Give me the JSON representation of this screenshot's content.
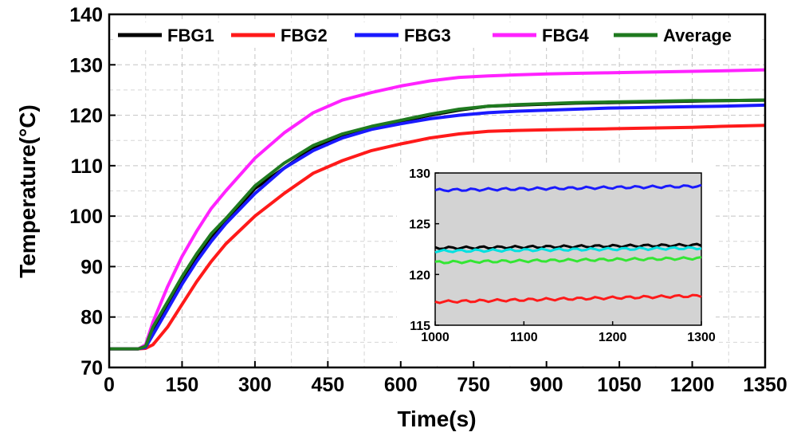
{
  "chart_data": {
    "type": "line",
    "xlabel": "Time(s)",
    "ylabel": "Temperature(°C)",
    "xlim": [
      0,
      1350
    ],
    "ylim": [
      70,
      140
    ],
    "xticks": [
      0,
      150,
      300,
      450,
      600,
      750,
      900,
      1050,
      1200,
      1350
    ],
    "yticks": [
      70,
      80,
      90,
      100,
      110,
      120,
      130,
      140
    ],
    "grid": true,
    "legend_position": "top",
    "series": [
      {
        "name": "FBG1",
        "color": "#000000",
        "x": [
          0,
          60,
          75,
          90,
          120,
          150,
          180,
          210,
          240,
          300,
          360,
          420,
          480,
          540,
          600,
          660,
          720,
          780,
          840,
          900,
          960,
          1020,
          1080,
          1140,
          1200,
          1260,
          1350
        ],
        "y": [
          73.7,
          73.7,
          74,
          77,
          82,
          87,
          92,
          96,
          99,
          105.5,
          109.5,
          113.5,
          116,
          117.5,
          118.8,
          120,
          121,
          121.8,
          122,
          122.2,
          122.4,
          122.5,
          122.6,
          122.7,
          122.8,
          122.9,
          123
        ]
      },
      {
        "name": "FBG2",
        "color": "#ff1a1a",
        "x": [
          0,
          60,
          75,
          90,
          120,
          150,
          180,
          210,
          240,
          300,
          360,
          420,
          480,
          540,
          600,
          660,
          720,
          780,
          840,
          900,
          960,
          1020,
          1080,
          1140,
          1200,
          1260,
          1350
        ],
        "y": [
          73.7,
          73.7,
          73.8,
          74.5,
          78,
          82.5,
          87,
          91,
          94.5,
          100,
          104.5,
          108.5,
          111,
          113,
          114.3,
          115.5,
          116.3,
          116.8,
          117,
          117.1,
          117.2,
          117.3,
          117.4,
          117.5,
          117.6,
          117.8,
          118
        ]
      },
      {
        "name": "FBG3",
        "color": "#1a1aff",
        "x": [
          0,
          60,
          75,
          90,
          120,
          150,
          180,
          210,
          240,
          300,
          360,
          420,
          480,
          540,
          600,
          660,
          720,
          780,
          840,
          900,
          960,
          1020,
          1080,
          1140,
          1200,
          1260,
          1350
        ],
        "y": [
          73.7,
          73.7,
          74,
          76.5,
          81.5,
          86.5,
          91,
          95,
          98.5,
          104.5,
          109.5,
          113,
          115.5,
          117.2,
          118.3,
          119.3,
          120,
          120.5,
          120.8,
          121,
          121.2,
          121.4,
          121.5,
          121.6,
          121.7,
          121.8,
          122
        ]
      },
      {
        "name": "FBG4",
        "color": "#ff22ff",
        "x": [
          0,
          60,
          75,
          90,
          120,
          150,
          180,
          210,
          240,
          300,
          360,
          420,
          480,
          540,
          600,
          660,
          720,
          780,
          840,
          900,
          960,
          1020,
          1080,
          1140,
          1200,
          1260,
          1350
        ],
        "y": [
          73.7,
          73.7,
          74.5,
          79,
          86,
          92,
          97,
          101.5,
          105,
          111.5,
          116.5,
          120.5,
          123,
          124.5,
          125.8,
          126.8,
          127.5,
          127.8,
          128,
          128.2,
          128.3,
          128.4,
          128.5,
          128.6,
          128.7,
          128.8,
          129
        ]
      },
      {
        "name": "Average",
        "color": "#1f7a1f",
        "x": [
          0,
          60,
          75,
          90,
          120,
          150,
          180,
          210,
          240,
          300,
          360,
          420,
          480,
          540,
          600,
          660,
          720,
          780,
          840,
          900,
          960,
          1020,
          1080,
          1140,
          1200,
          1260,
          1350
        ],
        "y": [
          73.7,
          73.7,
          74.2,
          78,
          83,
          88,
          92.5,
          96.5,
          99.5,
          106,
          110.5,
          114,
          116.3,
          117.8,
          119,
          120.2,
          121.2,
          121.8,
          122.1,
          122.3,
          122.5,
          122.6,
          122.7,
          122.8,
          122.9,
          122.9,
          123
        ]
      }
    ],
    "inset": {
      "xlim": [
        1000,
        1300
      ],
      "ylim": [
        115,
        130
      ],
      "xticks": [
        1000,
        1100,
        1200,
        1300
      ],
      "yticks": [
        115,
        120,
        125,
        130
      ],
      "background": "#d3d3d3",
      "series": [
        {
          "color": "#1a1aff",
          "x": [
            1000,
            1300
          ],
          "y": [
            128.3,
            128.7
          ]
        },
        {
          "color": "#000000",
          "x": [
            1000,
            1300
          ],
          "y": [
            122.6,
            122.9
          ]
        },
        {
          "color": "#00e0e0",
          "x": [
            1000,
            1300
          ],
          "y": [
            122.3,
            122.6
          ]
        },
        {
          "color": "#33e633",
          "x": [
            1000,
            1300
          ],
          "y": [
            121.2,
            121.6
          ]
        },
        {
          "color": "#ff1a1a",
          "x": [
            1000,
            1300
          ],
          "y": [
            117.3,
            117.9
          ]
        }
      ]
    }
  }
}
